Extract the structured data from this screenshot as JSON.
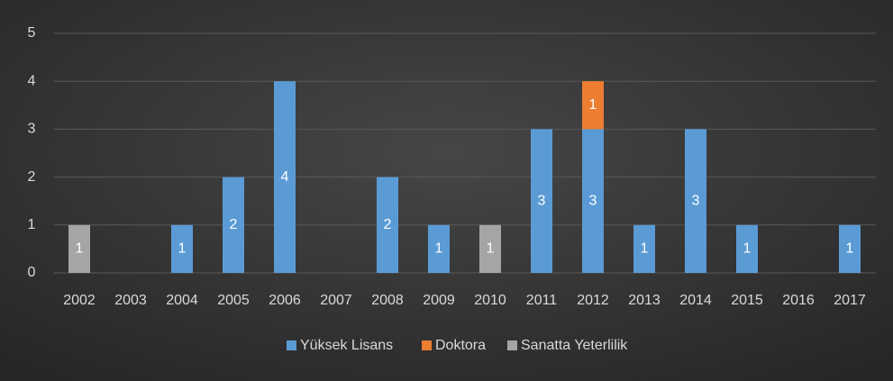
{
  "chart_data": {
    "type": "stacked-bar",
    "categories": [
      "2002",
      "2003",
      "2004",
      "2005",
      "2006",
      "2007",
      "2008",
      "2009",
      "2010",
      "2011",
      "2012",
      "2013",
      "2014",
      "2015",
      "2016",
      "2017"
    ],
    "series": [
      {
        "name": "Yüksek Lisans",
        "color": "#5b9bd5",
        "values": [
          null,
          null,
          1,
          2,
          4,
          null,
          2,
          1,
          null,
          3,
          3,
          1,
          3,
          1,
          null,
          1
        ]
      },
      {
        "name": "Doktora",
        "color": "#ed7d31",
        "values": [
          null,
          null,
          null,
          null,
          null,
          null,
          null,
          null,
          null,
          null,
          1,
          null,
          null,
          null,
          null,
          null
        ]
      },
      {
        "name": "Sanatta Yeterlilik",
        "color": "#a5a5a5",
        "values": [
          1,
          null,
          null,
          null,
          null,
          null,
          null,
          null,
          1,
          null,
          null,
          null,
          null,
          null,
          null,
          null
        ]
      }
    ],
    "ylim": [
      0,
      5
    ],
    "yticks": [
      0,
      1,
      2,
      3,
      4,
      5
    ],
    "grid": true,
    "legend": "bottom"
  }
}
